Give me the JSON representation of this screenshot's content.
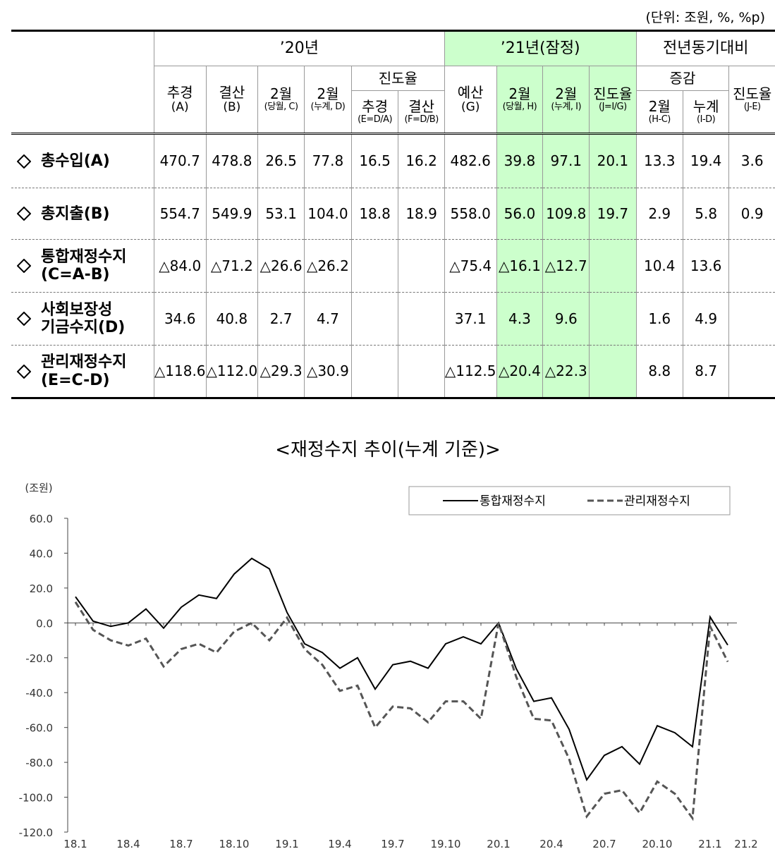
{
  "unit": "(단위: 조원, %, %p)",
  "table": {
    "groups": [
      "’20년",
      "’21년(잠정)",
      "전년동기대비"
    ],
    "subgroups": [
      "진도율",
      "증감"
    ],
    "columns": [
      {
        "label": "추경",
        "note": "(A)"
      },
      {
        "label": "결산",
        "note": "(B)"
      },
      {
        "label": "2월",
        "note": "(당월, C)"
      },
      {
        "label": "2월",
        "note": "(누계, D)"
      },
      {
        "label": "추경",
        "note": "(E=D/A)"
      },
      {
        "label": "결산",
        "note": "(F=D/B)"
      },
      {
        "label": "예산",
        "note": "(G)"
      },
      {
        "label": "2월",
        "note": "(당월, H)"
      },
      {
        "label": "2월",
        "note": "(누계, I)"
      },
      {
        "label": "진도율",
        "note": "(J=I/G)"
      },
      {
        "label": "2월",
        "note": "(H-C)"
      },
      {
        "label": "누계",
        "note": "(I-D)"
      },
      {
        "label": "진도율",
        "note": "(J-E)"
      }
    ],
    "rows": [
      {
        "label": [
          "총수입(A)"
        ],
        "cells": [
          "470.7",
          "478.8",
          "26.5",
          "77.8",
          "16.5",
          "16.2",
          "482.6",
          "39.8",
          "97.1",
          "20.1",
          "13.3",
          "19.4",
          "3.6"
        ]
      },
      {
        "label": [
          "총지출(B)"
        ],
        "cells": [
          "554.7",
          "549.9",
          "53.1",
          "104.0",
          "18.8",
          "18.9",
          "558.0",
          "56.0",
          "109.8",
          "19.7",
          "2.9",
          "5.8",
          "0.9"
        ]
      },
      {
        "label": [
          "통합재정수지",
          "(C=A-B)"
        ],
        "cells": [
          "△84.0",
          "△71.2",
          "△26.6",
          "△26.2",
          null,
          null,
          "△75.4",
          "△16.1",
          "△12.7",
          null,
          "10.4",
          "13.6",
          null
        ]
      },
      {
        "label": [
          "사회보장성",
          "기금수지(D)"
        ],
        "cells": [
          "34.6",
          "40.8",
          "2.7",
          "4.7",
          null,
          null,
          "37.1",
          "4.3",
          "9.6",
          null,
          "1.6",
          "4.9",
          null
        ]
      },
      {
        "label": [
          "관리재정수지",
          "(E=C-D)"
        ],
        "cells": [
          "△118.6",
          "△112.0",
          "△29.3",
          "△30.9",
          null,
          null,
          "△112.5",
          "△20.4",
          "△22.3",
          null,
          "8.8",
          "8.7",
          null
        ]
      }
    ]
  },
  "chart_data": {
    "type": "line",
    "title": "<재정수지 추이(누계 기준)>",
    "y_label": "(조원)",
    "categories": [
      "18.1",
      null,
      null,
      "18.4",
      null,
      null,
      "18.7",
      null,
      null,
      "18.10",
      null,
      null,
      "19.1",
      null,
      null,
      "19.4",
      null,
      null,
      "19.7",
      null,
      null,
      "19.10",
      null,
      null,
      "20.1",
      null,
      null,
      "20.4",
      null,
      null,
      "20.7",
      null,
      null,
      "20.10",
      null,
      null,
      "21.1",
      "21.2"
    ],
    "series": [
      {
        "name": "통합재정수지",
        "color": "#000000",
        "dash": false,
        "values": [
          15,
          1,
          -2,
          0,
          8,
          -3,
          9,
          16,
          14,
          28,
          37,
          31,
          6,
          -12,
          -17,
          -26,
          -20,
          -38,
          -24,
          -22,
          -26,
          -12,
          -8,
          -12,
          0,
          -26.2,
          -45,
          -43,
          -61,
          -90,
          -76,
          -71,
          -81,
          -59,
          -63,
          -71,
          3.4,
          -12.7
        ]
      },
      {
        "name": "관리재정수지",
        "color": "#555555",
        "dash": true,
        "values": [
          12,
          -4,
          -10,
          -13,
          -9,
          -25,
          -15,
          -12,
          -17,
          -5,
          0,
          -10,
          3,
          -15,
          -24,
          -39,
          -36,
          -60,
          -48,
          -49,
          -57,
          -45,
          -45,
          -55,
          0,
          -30.9,
          -55,
          -56,
          -78,
          -111,
          -98,
          -96,
          -109,
          -91,
          -98,
          -112,
          -2,
          -22.3
        ]
      }
    ],
    "ylim": [
      -120,
      60
    ],
    "yticks": [
      {
        "value": 60,
        "label": "60.0"
      },
      {
        "value": 40,
        "label": "40.0"
      },
      {
        "value": 20,
        "label": "20.0"
      },
      {
        "value": 0,
        "label": "0.0"
      },
      {
        "value": -20,
        "label": "-20.0"
      },
      {
        "value": -40,
        "label": "-40.0"
      },
      {
        "value": -60,
        "label": "-60.0"
      },
      {
        "value": -80,
        "label": "-80.0"
      },
      {
        "value": -100,
        "label": "-100.0"
      },
      {
        "value": -120,
        "label": "-120.0"
      }
    ],
    "grid": false,
    "legend": "top-right"
  }
}
